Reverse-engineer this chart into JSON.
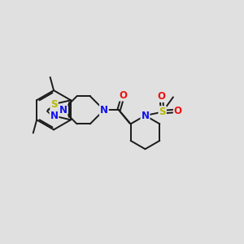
{
  "background_color": "#e0e0e0",
  "bond_color": "#1a1a1a",
  "bond_width": 1.4,
  "dbo": 0.06,
  "atom_colors": {
    "N": "#1010ee",
    "S": "#b8b800",
    "O": "#ee1010"
  }
}
